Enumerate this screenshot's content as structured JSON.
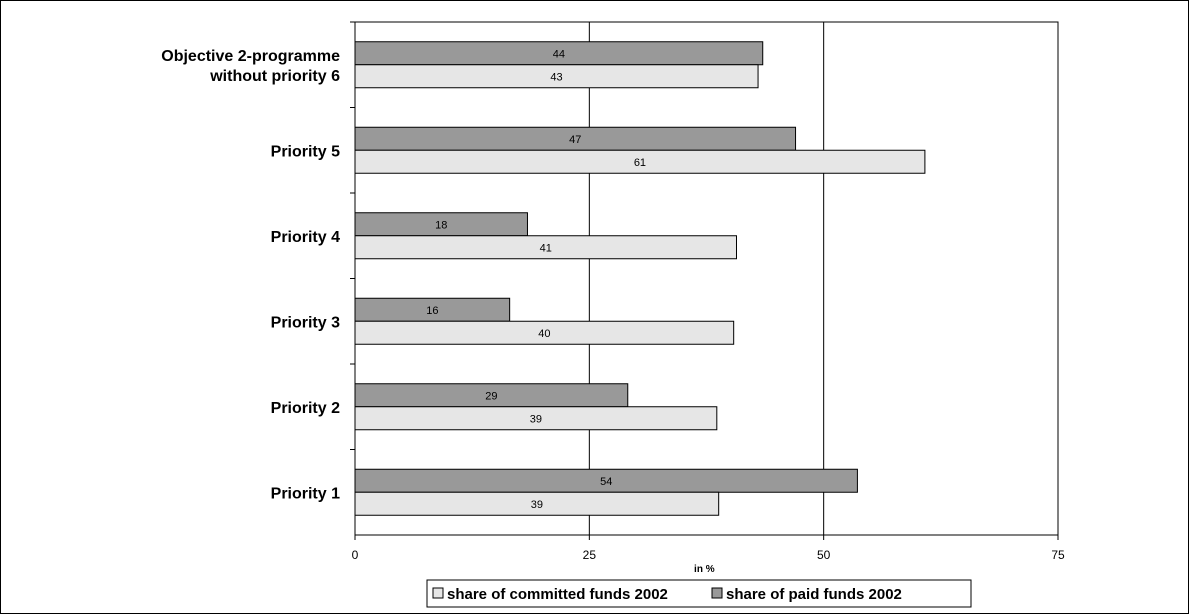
{
  "chart_data": {
    "type": "bar",
    "orientation": "horizontal",
    "categories": [
      "Priority 1",
      "Priority 2",
      "Priority 3",
      "Priority 4",
      "Priority 5",
      "Objective 2-programme without priority 6"
    ],
    "category_display": [
      [
        "Priority 1"
      ],
      [
        "Priority 2"
      ],
      [
        "Priority 3"
      ],
      [
        "Priority 4"
      ],
      [
        "Priority 5"
      ],
      [
        "Objective 2-programme",
        "without priority 6"
      ]
    ],
    "series": [
      {
        "name": "share of committed funds 2002",
        "color": "#e6e6e6",
        "values": [
          39,
          39,
          40,
          41,
          61,
          43
        ],
        "exact": [
          38.8,
          38.6,
          40.4,
          40.7,
          60.8,
          43.0
        ]
      },
      {
        "name": "share of paid funds 2002",
        "color": "#999999",
        "values": [
          54,
          29,
          16,
          18,
          47,
          44
        ],
        "exact": [
          53.6,
          29.1,
          16.5,
          18.4,
          47.0,
          43.5
        ]
      }
    ],
    "xlabel": "in %",
    "ylabel": "",
    "title": "",
    "xlim": [
      0,
      75
    ],
    "xticks": [
      0,
      25,
      50,
      75
    ],
    "grid": "vertical",
    "legend_position": "bottom"
  }
}
